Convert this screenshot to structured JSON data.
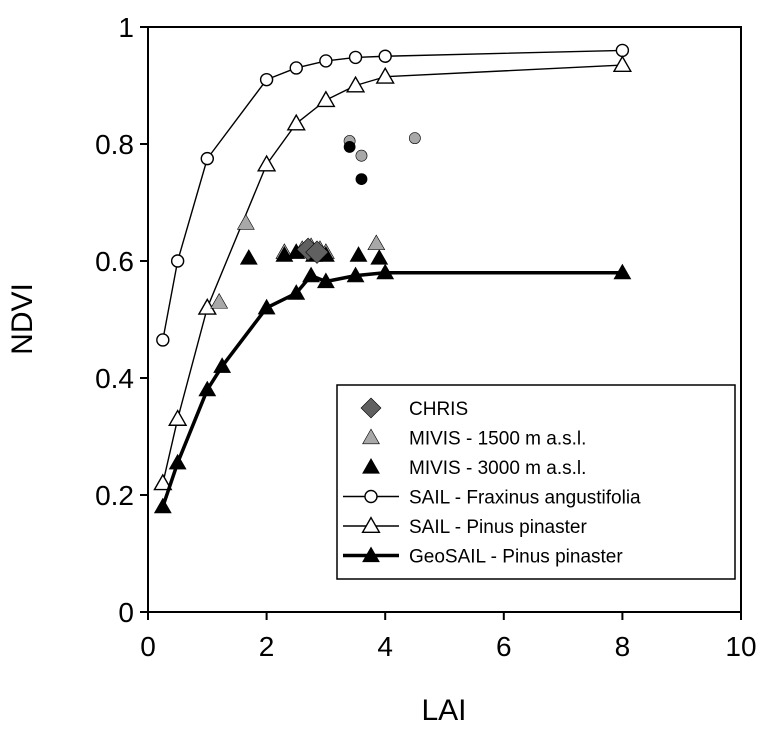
{
  "chart_data": {
    "type": "scatter",
    "xlabel": "LAI",
    "ylabel": "NDVI",
    "xlim": [
      0,
      10
    ],
    "ylim": [
      0,
      1
    ],
    "xticks": [
      "0",
      "2",
      "4",
      "6",
      "8",
      "10"
    ],
    "yticks": [
      "0",
      "0.2",
      "0.4",
      "0.6",
      "0.8",
      "1"
    ],
    "grid": false,
    "legend_position": "bottom-right",
    "series": [
      {
        "name": "CHRIS",
        "kind": "points",
        "marker": "diamond",
        "color": "#606060",
        "points": [
          [
            2.7,
            0.62
          ],
          [
            2.85,
            0.615
          ]
        ]
      },
      {
        "name": "MIVIS - 1500 m a.s.l.",
        "kind": "points",
        "marker": "triangle-filled",
        "color": "#a8a8a8",
        "points": [
          [
            1.65,
            0.665
          ],
          [
            1.2,
            0.53
          ],
          [
            2.3,
            0.615
          ],
          [
            2.6,
            0.62
          ],
          [
            2.75,
            0.625
          ],
          [
            2.9,
            0.62
          ],
          [
            3.0,
            0.615
          ],
          [
            3.85,
            0.63
          ]
        ]
      },
      {
        "name": "MIVIS - 3000 m a.s.l.",
        "kind": "points",
        "marker": "triangle-filled",
        "color": "#000000",
        "points": [
          [
            1.7,
            0.605
          ],
          [
            2.3,
            0.61
          ],
          [
            2.5,
            0.615
          ],
          [
            2.8,
            0.61
          ],
          [
            3.0,
            0.61
          ],
          [
            3.55,
            0.61
          ],
          [
            3.9,
            0.605
          ]
        ]
      },
      {
        "name": "",
        "kind": "points",
        "marker": "circle-filled",
        "color": "#a8a8a8",
        "points": [
          [
            3.4,
            0.805
          ],
          [
            3.6,
            0.78
          ],
          [
            4.5,
            0.81
          ]
        ]
      },
      {
        "name": "",
        "kind": "points",
        "marker": "circle-filled",
        "color": "#000000",
        "points": [
          [
            3.4,
            0.795
          ],
          [
            3.6,
            0.74
          ]
        ]
      },
      {
        "name": "SAIL - Fraxinus angustifolia",
        "kind": "line",
        "marker": "circle-open",
        "color": "#000000",
        "x": [
          0.25,
          0.5,
          1.0,
          2.0,
          2.5,
          3.0,
          3.5,
          4.0,
          8.0
        ],
        "y": [
          0.465,
          0.6,
          0.775,
          0.91,
          0.93,
          0.942,
          0.948,
          0.95,
          0.96
        ]
      },
      {
        "name": "SAIL - Pinus pinaster",
        "kind": "line",
        "marker": "triangle-open",
        "color": "#000000",
        "x": [
          0.25,
          0.5,
          1.0,
          2.0,
          2.5,
          3.0,
          3.5,
          4.0,
          8.0
        ],
        "y": [
          0.22,
          0.33,
          0.52,
          0.765,
          0.835,
          0.875,
          0.9,
          0.915,
          0.935
        ]
      },
      {
        "name": "GeoSAIL - Pinus pinaster",
        "kind": "line",
        "marker": "triangle-filled",
        "color": "#000000",
        "x": [
          0.25,
          0.5,
          1.0,
          1.25,
          2.0,
          2.5,
          2.75,
          3.0,
          3.5,
          4.0,
          8.0
        ],
        "y": [
          0.18,
          0.255,
          0.38,
          0.42,
          0.52,
          0.545,
          0.575,
          0.565,
          0.575,
          0.58,
          0.58
        ]
      }
    ],
    "legend_entries": [
      {
        "label": "CHRIS",
        "marker": "diamond",
        "color": "#606060",
        "line": false
      },
      {
        "label": "MIVIS - 1500 m a.s.l.",
        "marker": "triangle-filled",
        "color": "#a8a8a8",
        "line": false
      },
      {
        "label": "MIVIS - 3000 m a.s.l.",
        "marker": "triangle-filled",
        "color": "#000000",
        "line": false
      },
      {
        "label": "SAIL - Fraxinus angustifolia",
        "marker": "circle-open",
        "color": "#000000",
        "line": true
      },
      {
        "label": "SAIL - Pinus pinaster",
        "marker": "triangle-open",
        "color": "#000000",
        "line": true
      },
      {
        "label": "GeoSAIL - Pinus pinaster",
        "marker": "triangle-filled",
        "color": "#000000",
        "line": true
      }
    ]
  }
}
